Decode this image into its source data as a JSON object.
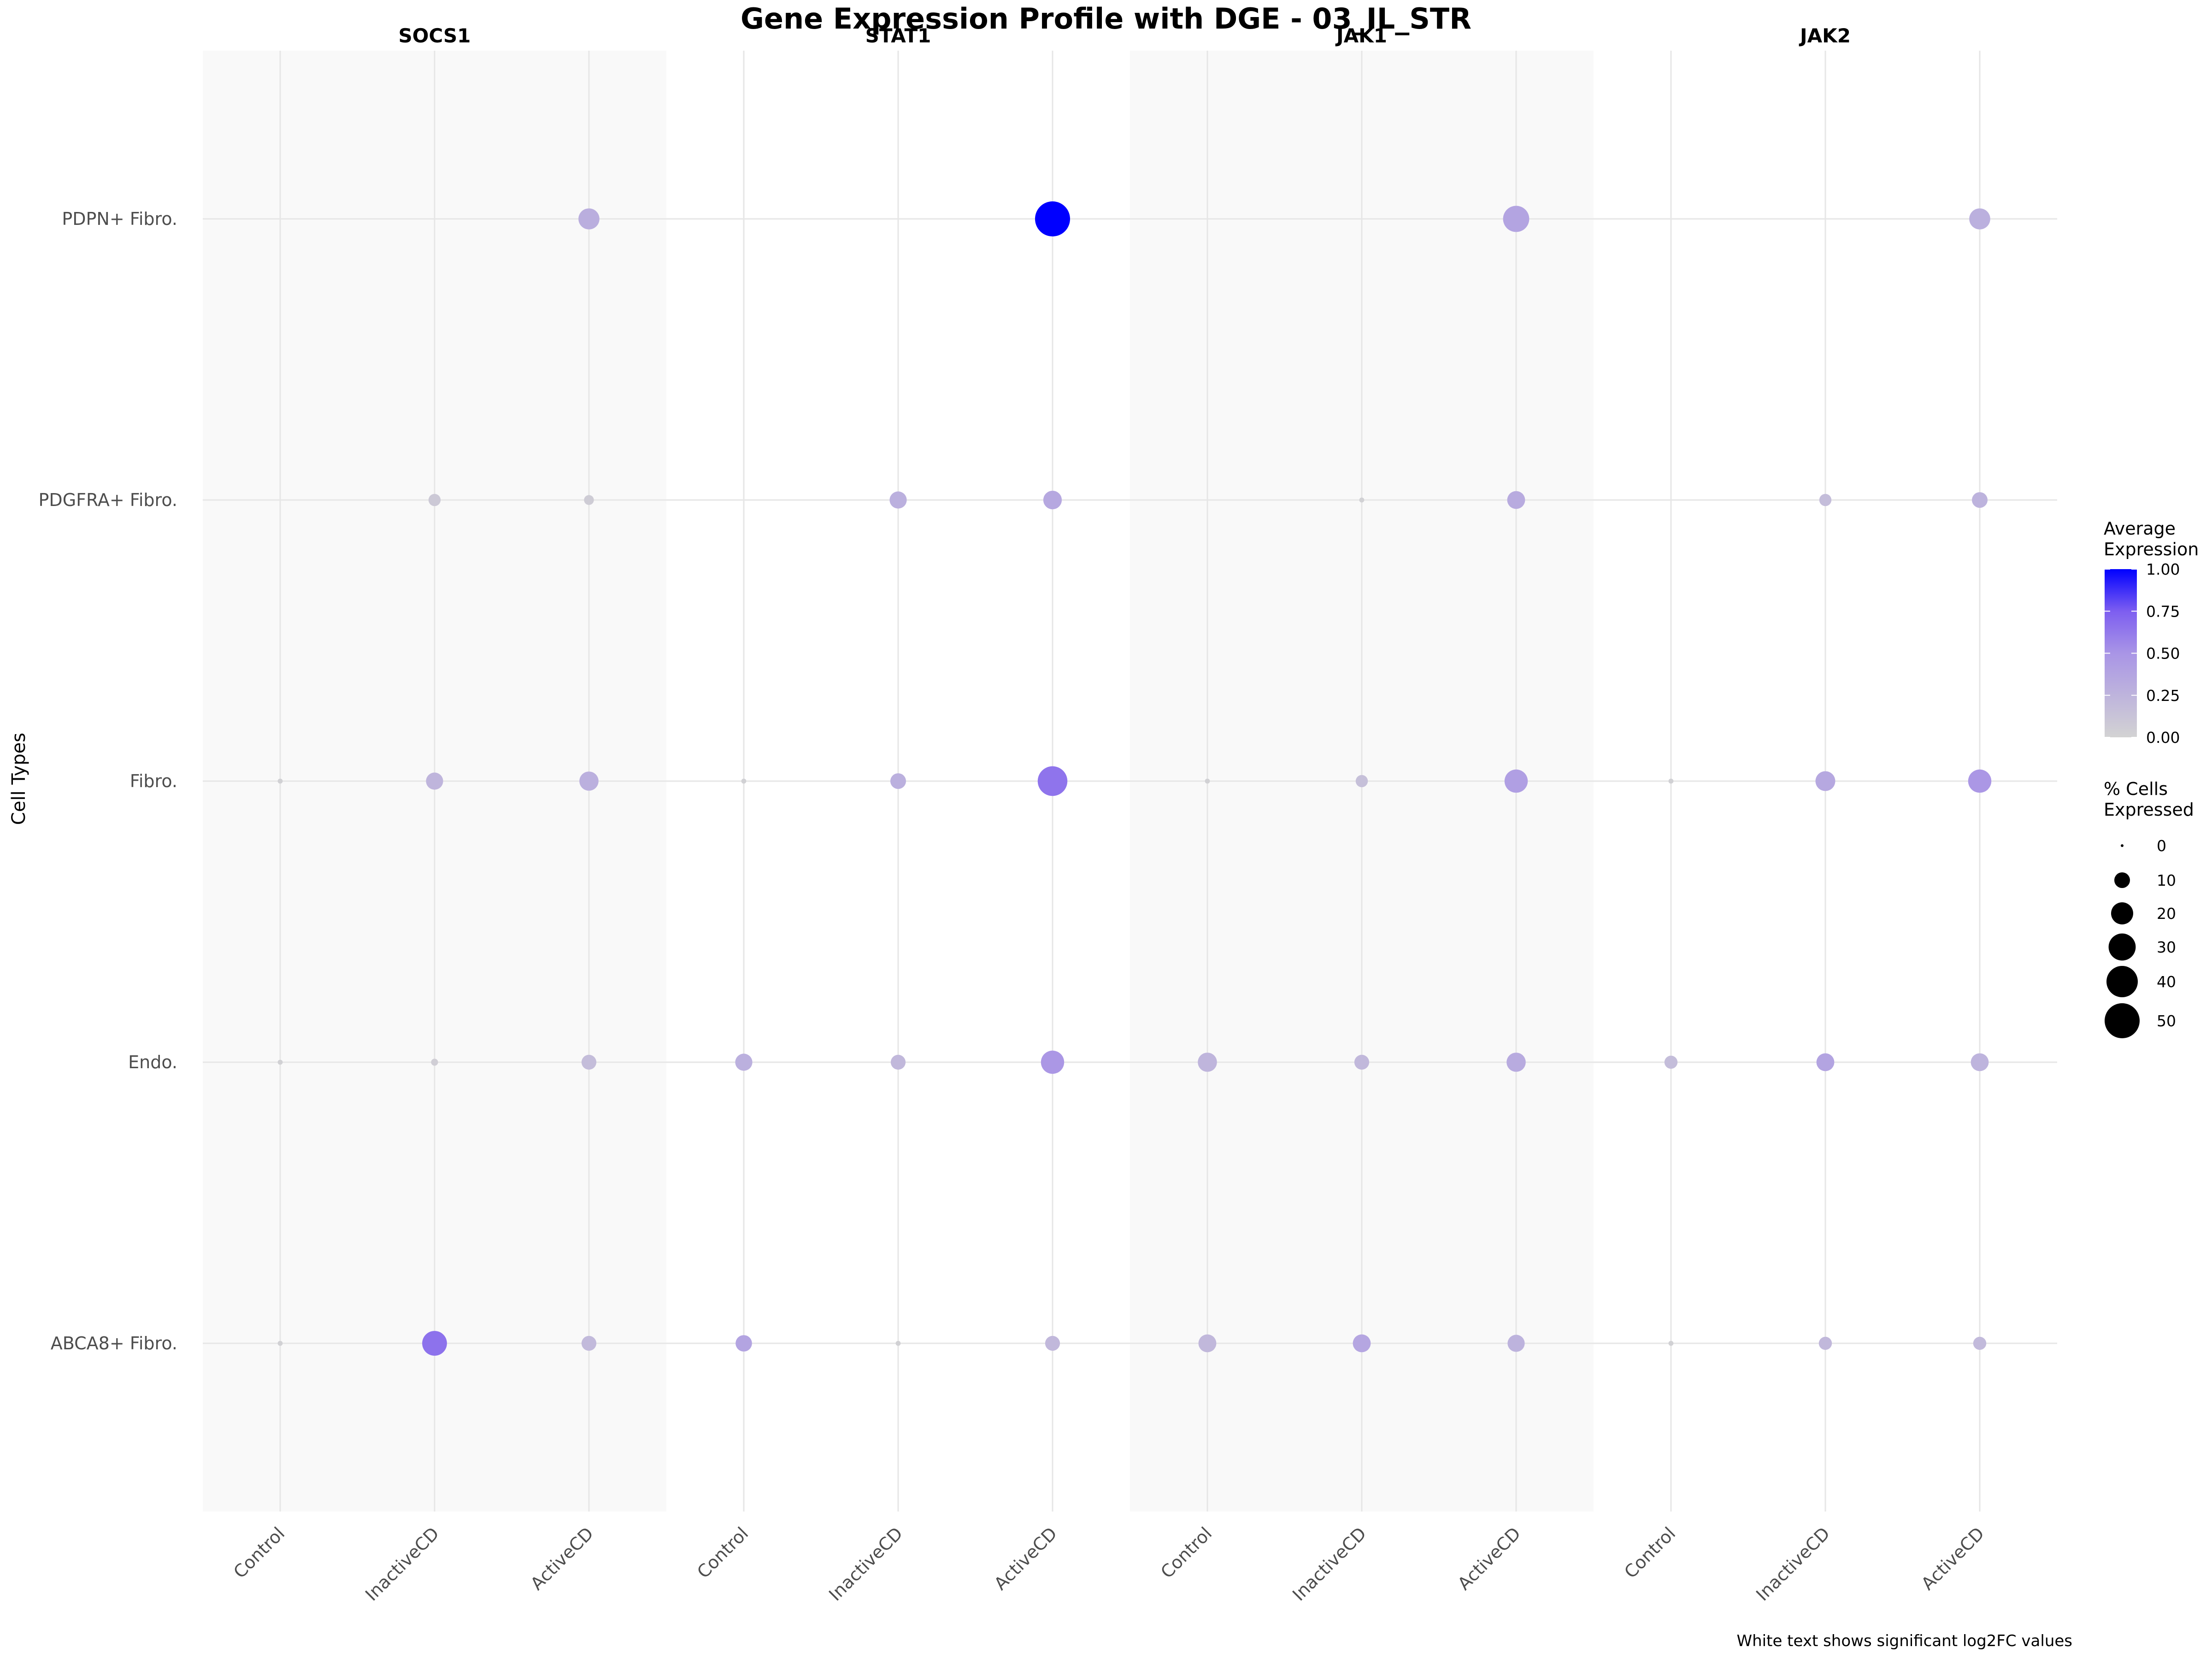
{
  "chart_data": {
    "type": "scatter",
    "title": "Gene Expression Profile with DGE - 03_IL_STR",
    "ylabel": "Cell Types",
    "caption": "White text shows significant log2FC values",
    "genes": [
      "SOCS1",
      "STAT1",
      "JAK1",
      "JAK2"
    ],
    "conditions": [
      "Control",
      "InactiveCD",
      "ActiveCD"
    ],
    "cell_types": [
      "PDPN+ Fibro.",
      "PDGFRA+ Fibro.",
      "Fibro.",
      "Endo.",
      "ABCA8+ Fibro."
    ],
    "points": [
      {
        "gene": "SOCS1",
        "condition": "Control",
        "cell_type": "PDPN+ Fibro.",
        "avg_expr": 0.0,
        "pct": 0
      },
      {
        "gene": "SOCS1",
        "condition": "InactiveCD",
        "cell_type": "PDPN+ Fibro.",
        "avg_expr": 0.0,
        "pct": 0
      },
      {
        "gene": "SOCS1",
        "condition": "ActiveCD",
        "cell_type": "PDPN+ Fibro.",
        "avg_expr": 0.3,
        "pct": 18
      },
      {
        "gene": "STAT1",
        "condition": "Control",
        "cell_type": "PDPN+ Fibro.",
        "avg_expr": 0.0,
        "pct": 0
      },
      {
        "gene": "STAT1",
        "condition": "InactiveCD",
        "cell_type": "PDPN+ Fibro.",
        "avg_expr": 0.0,
        "pct": 0
      },
      {
        "gene": "STAT1",
        "condition": "ActiveCD",
        "cell_type": "PDPN+ Fibro.",
        "avg_expr": 1.0,
        "pct": 50
      },
      {
        "gene": "JAK1",
        "condition": "Control",
        "cell_type": "PDPN+ Fibro.",
        "avg_expr": 0.0,
        "pct": 0
      },
      {
        "gene": "JAK1",
        "condition": "InactiveCD",
        "cell_type": "PDPN+ Fibro.",
        "avg_expr": 0.0,
        "pct": 0
      },
      {
        "gene": "JAK1",
        "condition": "ActiveCD",
        "cell_type": "PDPN+ Fibro.",
        "avg_expr": 0.38,
        "pct": 28
      },
      {
        "gene": "JAK2",
        "condition": "Control",
        "cell_type": "PDPN+ Fibro.",
        "avg_expr": 0.0,
        "pct": 0
      },
      {
        "gene": "JAK2",
        "condition": "InactiveCD",
        "cell_type": "PDPN+ Fibro.",
        "avg_expr": 0.0,
        "pct": 0
      },
      {
        "gene": "JAK2",
        "condition": "ActiveCD",
        "cell_type": "PDPN+ Fibro.",
        "avg_expr": 0.28,
        "pct": 18
      },
      {
        "gene": "SOCS1",
        "condition": "Control",
        "cell_type": "PDGFRA+ Fibro.",
        "avg_expr": 0.0,
        "pct": 0
      },
      {
        "gene": "SOCS1",
        "condition": "InactiveCD",
        "cell_type": "PDGFRA+ Fibro.",
        "avg_expr": 0.08,
        "pct": 6
      },
      {
        "gene": "SOCS1",
        "condition": "ActiveCD",
        "cell_type": "PDGFRA+ Fibro.",
        "avg_expr": 0.06,
        "pct": 4
      },
      {
        "gene": "STAT1",
        "condition": "Control",
        "cell_type": "PDGFRA+ Fibro.",
        "avg_expr": 0.0,
        "pct": 0
      },
      {
        "gene": "STAT1",
        "condition": "InactiveCD",
        "cell_type": "PDGFRA+ Fibro.",
        "avg_expr": 0.28,
        "pct": 12
      },
      {
        "gene": "STAT1",
        "condition": "ActiveCD",
        "cell_type": "PDGFRA+ Fibro.",
        "avg_expr": 0.35,
        "pct": 14
      },
      {
        "gene": "JAK1",
        "condition": "Control",
        "cell_type": "PDGFRA+ Fibro.",
        "avg_expr": 0.0,
        "pct": 0
      },
      {
        "gene": "JAK1",
        "condition": "InactiveCD",
        "cell_type": "PDGFRA+ Fibro.",
        "avg_expr": 0.02,
        "pct": 1
      },
      {
        "gene": "JAK1",
        "condition": "ActiveCD",
        "cell_type": "PDGFRA+ Fibro.",
        "avg_expr": 0.32,
        "pct": 13
      },
      {
        "gene": "JAK2",
        "condition": "Control",
        "cell_type": "PDGFRA+ Fibro.",
        "avg_expr": 0.0,
        "pct": 0
      },
      {
        "gene": "JAK2",
        "condition": "InactiveCD",
        "cell_type": "PDGFRA+ Fibro.",
        "avg_expr": 0.18,
        "pct": 6
      },
      {
        "gene": "JAK2",
        "condition": "ActiveCD",
        "cell_type": "PDGFRA+ Fibro.",
        "avg_expr": 0.26,
        "pct": 10
      },
      {
        "gene": "SOCS1",
        "condition": "Control",
        "cell_type": "Fibro.",
        "avg_expr": 0.02,
        "pct": 1
      },
      {
        "gene": "SOCS1",
        "condition": "InactiveCD",
        "cell_type": "Fibro.",
        "avg_expr": 0.24,
        "pct": 12
      },
      {
        "gene": "SOCS1",
        "condition": "ActiveCD",
        "cell_type": "Fibro.",
        "avg_expr": 0.28,
        "pct": 15
      },
      {
        "gene": "STAT1",
        "condition": "Control",
        "cell_type": "Fibro.",
        "avg_expr": 0.02,
        "pct": 1
      },
      {
        "gene": "STAT1",
        "condition": "InactiveCD",
        "cell_type": "Fibro.",
        "avg_expr": 0.28,
        "pct": 10
      },
      {
        "gene": "STAT1",
        "condition": "ActiveCD",
        "cell_type": "Fibro.",
        "avg_expr": 0.65,
        "pct": 36
      },
      {
        "gene": "JAK1",
        "condition": "Control",
        "cell_type": "Fibro.",
        "avg_expr": 0.02,
        "pct": 1
      },
      {
        "gene": "JAK1",
        "condition": "InactiveCD",
        "cell_type": "Fibro.",
        "avg_expr": 0.15,
        "pct": 6
      },
      {
        "gene": "JAK1",
        "condition": "ActiveCD",
        "cell_type": "Fibro.",
        "avg_expr": 0.42,
        "pct": 22
      },
      {
        "gene": "JAK2",
        "condition": "Control",
        "cell_type": "Fibro.",
        "avg_expr": 0.02,
        "pct": 1
      },
      {
        "gene": "JAK2",
        "condition": "InactiveCD",
        "cell_type": "Fibro.",
        "avg_expr": 0.35,
        "pct": 16
      },
      {
        "gene": "JAK2",
        "condition": "ActiveCD",
        "cell_type": "Fibro.",
        "avg_expr": 0.48,
        "pct": 22
      },
      {
        "gene": "SOCS1",
        "condition": "Control",
        "cell_type": "Endo.",
        "avg_expr": 0.02,
        "pct": 1
      },
      {
        "gene": "SOCS1",
        "condition": "InactiveCD",
        "cell_type": "Endo.",
        "avg_expr": 0.04,
        "pct": 2
      },
      {
        "gene": "SOCS1",
        "condition": "ActiveCD",
        "cell_type": "Endo.",
        "avg_expr": 0.18,
        "pct": 9
      },
      {
        "gene": "STAT1",
        "condition": "Control",
        "cell_type": "Endo.",
        "avg_expr": 0.28,
        "pct": 12
      },
      {
        "gene": "STAT1",
        "condition": "InactiveCD",
        "cell_type": "Endo.",
        "avg_expr": 0.22,
        "pct": 9
      },
      {
        "gene": "STAT1",
        "condition": "ActiveCD",
        "cell_type": "Endo.",
        "avg_expr": 0.48,
        "pct": 22
      },
      {
        "gene": "JAK1",
        "condition": "Control",
        "cell_type": "Endo.",
        "avg_expr": 0.24,
        "pct": 15
      },
      {
        "gene": "JAK1",
        "condition": "InactiveCD",
        "cell_type": "Endo.",
        "avg_expr": 0.22,
        "pct": 9
      },
      {
        "gene": "JAK1",
        "condition": "ActiveCD",
        "cell_type": "Endo.",
        "avg_expr": 0.32,
        "pct": 15
      },
      {
        "gene": "JAK2",
        "condition": "Control",
        "cell_type": "Endo.",
        "avg_expr": 0.18,
        "pct": 7
      },
      {
        "gene": "JAK2",
        "condition": "InactiveCD",
        "cell_type": "Endo.",
        "avg_expr": 0.38,
        "pct": 13
      },
      {
        "gene": "JAK2",
        "condition": "ActiveCD",
        "cell_type": "Endo.",
        "avg_expr": 0.25,
        "pct": 13
      },
      {
        "gene": "SOCS1",
        "condition": "Control",
        "cell_type": "ABCA8+ Fibro.",
        "avg_expr": 0.02,
        "pct": 1
      },
      {
        "gene": "SOCS1",
        "condition": "InactiveCD",
        "cell_type": "ABCA8+ Fibro.",
        "avg_expr": 0.66,
        "pct": 25
      },
      {
        "gene": "SOCS1",
        "condition": "ActiveCD",
        "cell_type": "ABCA8+ Fibro.",
        "avg_expr": 0.2,
        "pct": 9
      },
      {
        "gene": "STAT1",
        "condition": "Control",
        "cell_type": "ABCA8+ Fibro.",
        "avg_expr": 0.38,
        "pct": 11
      },
      {
        "gene": "STAT1",
        "condition": "InactiveCD",
        "cell_type": "ABCA8+ Fibro.",
        "avg_expr": 0.02,
        "pct": 1
      },
      {
        "gene": "STAT1",
        "condition": "ActiveCD",
        "cell_type": "ABCA8+ Fibro.",
        "avg_expr": 0.22,
        "pct": 9
      },
      {
        "gene": "JAK1",
        "condition": "Control",
        "cell_type": "ABCA8+ Fibro.",
        "avg_expr": 0.22,
        "pct": 13
      },
      {
        "gene": "JAK1",
        "condition": "InactiveCD",
        "cell_type": "ABCA8+ Fibro.",
        "avg_expr": 0.36,
        "pct": 13
      },
      {
        "gene": "JAK1",
        "condition": "ActiveCD",
        "cell_type": "ABCA8+ Fibro.",
        "avg_expr": 0.26,
        "pct": 12
      },
      {
        "gene": "JAK2",
        "condition": "Control",
        "cell_type": "ABCA8+ Fibro.",
        "avg_expr": 0.02,
        "pct": 1
      },
      {
        "gene": "JAK2",
        "condition": "InactiveCD",
        "cell_type": "ABCA8+ Fibro.",
        "avg_expr": 0.22,
        "pct": 7
      },
      {
        "gene": "JAK2",
        "condition": "ActiveCD",
        "cell_type": "ABCA8+ Fibro.",
        "avg_expr": 0.2,
        "pct": 7
      }
    ],
    "color_legend": {
      "title_line1": "Average",
      "title_line2": "Expression",
      "ticks": [
        "1.00",
        "0.75",
        "0.50",
        "0.25",
        "0.00"
      ],
      "tick_values": [
        1.0,
        0.75,
        0.5,
        0.25,
        0.0
      ],
      "low_color": "#d3d3d3",
      "high_color": "#0000ff",
      "range": [
        0,
        1
      ]
    },
    "size_legend": {
      "title_line1": "% Cells",
      "title_line2": "Expressed",
      "labels": [
        "0",
        "10",
        "20",
        "30",
        "40",
        "50"
      ],
      "values": [
        0,
        10,
        20,
        30,
        40,
        50
      ]
    },
    "panel_colors": {
      "shaded": "#f9f9f9",
      "grid": "#e6e6e6"
    },
    "legend_position": "right"
  }
}
